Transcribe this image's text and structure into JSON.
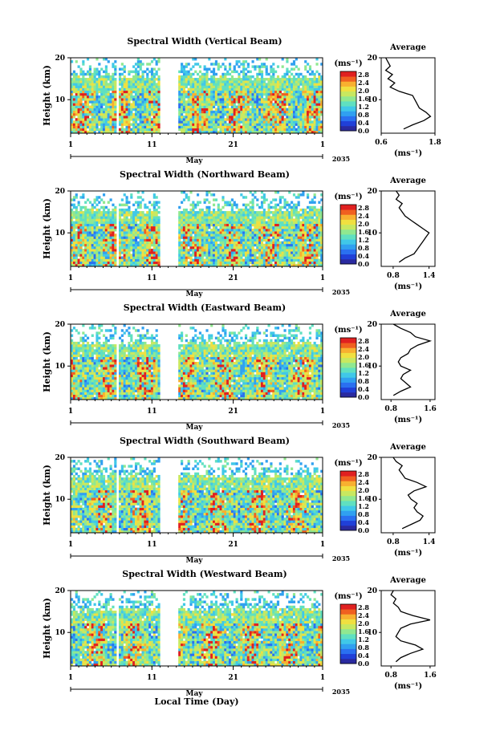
{
  "xaxis_label": "Local Time (Day)",
  "colorbar_ticks": [
    "0.0",
    "0.4",
    "0.8",
    "1.2",
    "1.6",
    "2.0",
    "2.4",
    "2.8"
  ],
  "colorbar_unit": "(ms⁻¹)",
  "palette": [
    "#2a2aa0",
    "#2040d8",
    "#2a70f0",
    "#30a0f0",
    "#40c8e8",
    "#60e0c0",
    "#90e890",
    "#c8e860",
    "#f0e040",
    "#f8b030",
    "#f06020",
    "#e02020"
  ],
  "chart_data": [
    {
      "type": "heatmap",
      "title": "Spectral Width (Vertical Beam)",
      "ylabel": "Height (km)",
      "ylim": [
        2,
        20
      ],
      "yticks": [
        "20",
        "10"
      ],
      "xticks": [
        "1",
        "11",
        "21",
        "1"
      ],
      "month": "May",
      "year": "2035",
      "clim": [
        0,
        2.8
      ],
      "gaps": [
        [
          5.5,
          5.8
        ],
        [
          11.1,
          13.3
        ],
        [
          13.5,
          13.6
        ]
      ],
      "profile": {
        "title": "Average",
        "xlabel": "(ms⁻¹)",
        "xticks": [
          "0.6",
          "1.8"
        ],
        "xlim": [
          0.6,
          1.8
        ],
        "heights": [
          3,
          4,
          5,
          6,
          7,
          8,
          9,
          10,
          11,
          12,
          13,
          14,
          15,
          16,
          17,
          18,
          19,
          20
        ],
        "values": [
          1.1,
          1.3,
          1.55,
          1.7,
          1.6,
          1.45,
          1.4,
          1.35,
          1.3,
          1.0,
          0.8,
          0.9,
          0.75,
          0.85,
          0.7,
          0.8,
          0.75,
          0.7
        ]
      }
    },
    {
      "type": "heatmap",
      "title": "Spectral Width (Northward Beam)",
      "ylabel": "Height (km)",
      "ylim": [
        2,
        20
      ],
      "yticks": [
        "20",
        "10"
      ],
      "xticks": [
        "1",
        "11",
        "21",
        "1"
      ],
      "month": "May",
      "year": "2035",
      "clim": [
        0,
        2.8
      ],
      "gaps": [
        [
          5.5,
          5.8
        ],
        [
          11.1,
          13.3
        ],
        [
          13.5,
          13.6
        ]
      ],
      "profile": {
        "title": "Average",
        "xlabel": "(ms⁻¹)",
        "xticks": [
          "0.8",
          "1.4"
        ],
        "xlim": [
          0.6,
          1.5
        ],
        "heights": [
          3,
          4,
          5,
          6,
          7,
          8,
          9,
          10,
          11,
          12,
          13,
          14,
          15,
          16,
          17,
          18,
          19,
          20
        ],
        "values": [
          0.9,
          1.0,
          1.15,
          1.2,
          1.25,
          1.3,
          1.35,
          1.4,
          1.3,
          1.2,
          1.1,
          1.0,
          0.95,
          0.9,
          0.95,
          0.85,
          0.9,
          0.85
        ]
      }
    },
    {
      "type": "heatmap",
      "title": "Spectral Width (Eastward Beam)",
      "ylabel": "Height (km)",
      "ylim": [
        2,
        20
      ],
      "yticks": [
        "20",
        "10"
      ],
      "xticks": [
        "1",
        "11",
        "21",
        "1"
      ],
      "month": "May",
      "year": "2035",
      "clim": [
        0,
        2.8
      ],
      "gaps": [
        [
          5.5,
          5.8
        ],
        [
          11.1,
          13.3
        ],
        [
          13.5,
          13.6
        ]
      ],
      "profile": {
        "title": "Average",
        "xlabel": "(ms⁻¹)",
        "xticks": [
          "0.8",
          "1.6"
        ],
        "xlim": [
          0.6,
          1.7
        ],
        "heights": [
          3,
          4,
          5,
          6,
          7,
          8,
          9,
          10,
          11,
          12,
          13,
          14,
          15,
          16,
          17,
          18,
          19,
          20
        ],
        "values": [
          0.85,
          1.0,
          1.2,
          1.1,
          1.0,
          1.05,
          1.2,
          1.0,
          0.95,
          1.0,
          1.15,
          1.2,
          1.35,
          1.6,
          1.3,
          1.2,
          1.0,
          0.85
        ]
      }
    },
    {
      "type": "heatmap",
      "title": "Spectral Width (Southward Beam)",
      "ylabel": "Height (km)",
      "ylim": [
        2,
        20
      ],
      "yticks": [
        "20",
        "10"
      ],
      "xticks": [
        "1",
        "11",
        "21",
        "1"
      ],
      "month": "May",
      "year": "2035",
      "clim": [
        0,
        2.8
      ],
      "gaps": [
        [
          5.5,
          5.8
        ],
        [
          11.1,
          13.3
        ],
        [
          13.5,
          13.6
        ]
      ],
      "profile": {
        "title": "Average",
        "xlabel": "(ms⁻¹)",
        "xticks": [
          "0.8",
          "1.4"
        ],
        "xlim": [
          0.6,
          1.5
        ],
        "heights": [
          3,
          4,
          5,
          6,
          7,
          8,
          9,
          10,
          11,
          12,
          13,
          14,
          15,
          16,
          17,
          18,
          19,
          20
        ],
        "values": [
          0.95,
          1.1,
          1.25,
          1.3,
          1.2,
          1.15,
          1.2,
          1.1,
          1.05,
          1.15,
          1.35,
          1.2,
          1.0,
          0.95,
          0.9,
          0.95,
          0.85,
          0.8
        ]
      }
    },
    {
      "type": "heatmap",
      "title": "Spectral Width (Westward Beam)",
      "ylabel": "Height (km)",
      "ylim": [
        2,
        20
      ],
      "yticks": [
        "20",
        "10"
      ],
      "xticks": [
        "1",
        "11",
        "21",
        "1"
      ],
      "month": "May",
      "year": "2035",
      "clim": [
        0,
        2.8
      ],
      "gaps": [
        [
          5.5,
          5.8
        ],
        [
          11.1,
          13.3
        ],
        [
          13.5,
          13.6
        ]
      ],
      "profile": {
        "title": "Average",
        "xlabel": "(ms⁻¹)",
        "xticks": [
          "0.8",
          "1.6"
        ],
        "xlim": [
          0.6,
          1.7
        ],
        "heights": [
          3,
          4,
          5,
          6,
          7,
          8,
          9,
          10,
          11,
          12,
          13,
          14,
          15,
          16,
          17,
          18,
          19,
          20
        ],
        "values": [
          0.9,
          1.0,
          1.2,
          1.45,
          1.3,
          1.0,
          0.9,
          0.95,
          1.0,
          1.2,
          1.6,
          1.25,
          1.0,
          0.95,
          0.85,
          0.9,
          0.8,
          0.85
        ]
      }
    }
  ]
}
